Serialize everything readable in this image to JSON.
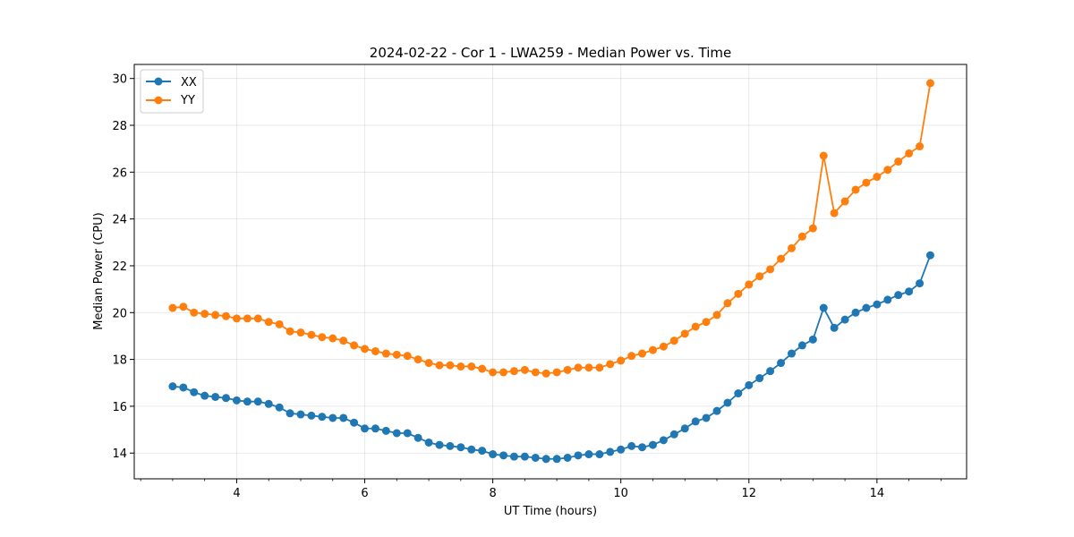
{
  "chart_data": {
    "type": "line",
    "title": "2024-02-22 - Cor 1 - LWA259 - Median Power vs. Time",
    "xlabel": "UT Time (hours)",
    "ylabel": "Median Power (CPU)",
    "xlim": [
      2.4,
      15.4
    ],
    "ylim": [
      12.9,
      30.6
    ],
    "xticks": [
      4,
      6,
      8,
      10,
      12,
      14
    ],
    "xtick_labels": [
      "4",
      "6",
      "8",
      "10",
      "12",
      "14"
    ],
    "yticks": [
      14,
      16,
      18,
      20,
      22,
      24,
      26,
      28,
      30
    ],
    "ytick_labels": [
      "14",
      "16",
      "18",
      "20",
      "22",
      "24",
      "26",
      "28",
      "30"
    ],
    "grid": true,
    "legend_position": "top-left",
    "x": [
      3.0,
      3.167,
      3.333,
      3.5,
      3.667,
      3.833,
      4.0,
      4.167,
      4.333,
      4.5,
      4.667,
      4.833,
      5.0,
      5.167,
      5.333,
      5.5,
      5.667,
      5.833,
      6.0,
      6.167,
      6.333,
      6.5,
      6.667,
      6.833,
      7.0,
      7.167,
      7.333,
      7.5,
      7.667,
      7.833,
      8.0,
      8.167,
      8.333,
      8.5,
      8.667,
      8.833,
      9.0,
      9.167,
      9.333,
      9.5,
      9.667,
      9.833,
      10.0,
      10.167,
      10.333,
      10.5,
      10.667,
      10.833,
      11.0,
      11.167,
      11.333,
      11.5,
      11.667,
      11.833,
      12.0,
      12.167,
      12.333,
      12.5,
      12.667,
      12.833,
      13.0,
      13.167,
      13.333,
      13.5,
      13.667,
      13.833,
      14.0,
      14.167,
      14.333,
      14.5,
      14.667,
      14.833
    ],
    "series": [
      {
        "name": "XX",
        "color": "#1f77b4",
        "values": [
          16.85,
          16.8,
          16.6,
          16.45,
          16.4,
          16.35,
          16.25,
          16.2,
          16.2,
          16.1,
          15.95,
          15.7,
          15.65,
          15.6,
          15.55,
          15.5,
          15.5,
          15.3,
          15.05,
          15.05,
          14.95,
          14.85,
          14.85,
          14.65,
          14.45,
          14.35,
          14.3,
          14.25,
          14.15,
          14.1,
          13.95,
          13.9,
          13.85,
          13.85,
          13.8,
          13.75,
          13.75,
          13.8,
          13.9,
          13.95,
          13.95,
          14.05,
          14.15,
          14.3,
          14.25,
          14.35,
          14.55,
          14.8,
          15.05,
          15.35,
          15.5,
          15.8,
          16.15,
          16.55,
          16.9,
          17.2,
          17.5,
          17.85,
          18.25,
          18.6,
          18.85,
          20.2,
          19.35,
          19.7,
          20.0,
          20.2,
          20.35,
          20.55,
          20.75,
          20.9,
          21.25,
          22.45
        ]
      },
      {
        "name": "YY",
        "color": "#ff7f0e",
        "values": [
          20.2,
          20.25,
          20.0,
          19.95,
          19.9,
          19.85,
          19.75,
          19.75,
          19.75,
          19.6,
          19.5,
          19.2,
          19.15,
          19.05,
          18.95,
          18.9,
          18.8,
          18.6,
          18.45,
          18.35,
          18.25,
          18.2,
          18.15,
          18.0,
          17.85,
          17.75,
          17.75,
          17.7,
          17.7,
          17.6,
          17.45,
          17.45,
          17.5,
          17.55,
          17.45,
          17.4,
          17.45,
          17.55,
          17.65,
          17.65,
          17.65,
          17.8,
          17.95,
          18.15,
          18.25,
          18.4,
          18.55,
          18.8,
          19.1,
          19.4,
          19.6,
          19.9,
          20.4,
          20.8,
          21.2,
          21.55,
          21.85,
          22.3,
          22.75,
          23.25,
          23.6,
          26.7,
          24.25,
          24.75,
          25.25,
          25.55,
          25.8,
          26.1,
          26.45,
          26.8,
          27.1,
          29.8
        ]
      }
    ]
  }
}
